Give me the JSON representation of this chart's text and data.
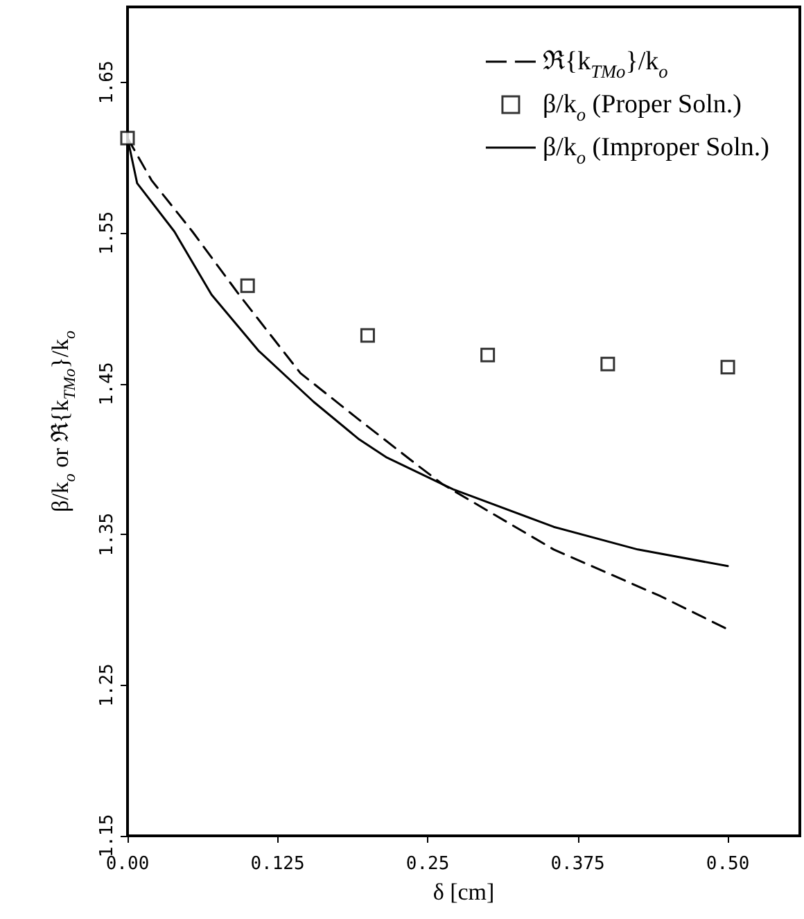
{
  "chart_data": {
    "type": "line",
    "xlabel": "δ [cm]",
    "ylabel": "β/k$_{o}$ or ℜ{k$_{TMo}$}/k$_{o}$",
    "xlim": [
      0,
      0.56
    ],
    "xticks": [
      {
        "value": 0,
        "label": "0.00"
      },
      0.125,
      0.25,
      0.375,
      {
        "value": 0.5,
        "label": "0.50"
      }
    ],
    "ylim": [
      1.15,
      1.7
    ],
    "yticks": [
      1.15,
      1.25,
      1.35,
      1.45,
      1.55,
      1.65
    ],
    "grid": false,
    "legend": "top right",
    "series": [
      {
        "name": "ℜ{k$_{TMo}$}/k$_{o}$",
        "color": "#000000",
        "marker": "none",
        "line_style": "dashed",
        "x": [
          0,
          0.02,
          0.054,
          0.093,
          0.144,
          0.193,
          0.243,
          0.263,
          0.355,
          0.444,
          0.5
        ],
        "values": [
          1.613,
          1.585,
          1.551,
          1.509,
          1.457,
          1.426,
          1.395,
          1.383,
          1.34,
          1.309,
          1.287
        ]
      },
      {
        "name": "β/k$_{o}$ (Proper Soln.)",
        "type": "scatter",
        "color": "#000000",
        "marker": "square",
        "x": [
          0,
          0.1,
          0.2,
          0.3,
          0.4,
          0.5
        ],
        "values": [
          1.613,
          1.515,
          1.482,
          1.469,
          1.463,
          1.461
        ]
      },
      {
        "name": "β/k$_{o}$ (Improper Soln.)",
        "color": "#000000",
        "marker": "none",
        "line_style": "solid",
        "x": [
          0,
          0.008,
          0.039,
          0.07,
          0.109,
          0.155,
          0.193,
          0.216,
          0.271,
          0.355,
          0.425,
          0.5
        ],
        "values": [
          1.613,
          1.583,
          1.551,
          1.509,
          1.472,
          1.438,
          1.413,
          1.401,
          1.38,
          1.355,
          1.34,
          1.329
        ]
      }
    ]
  }
}
